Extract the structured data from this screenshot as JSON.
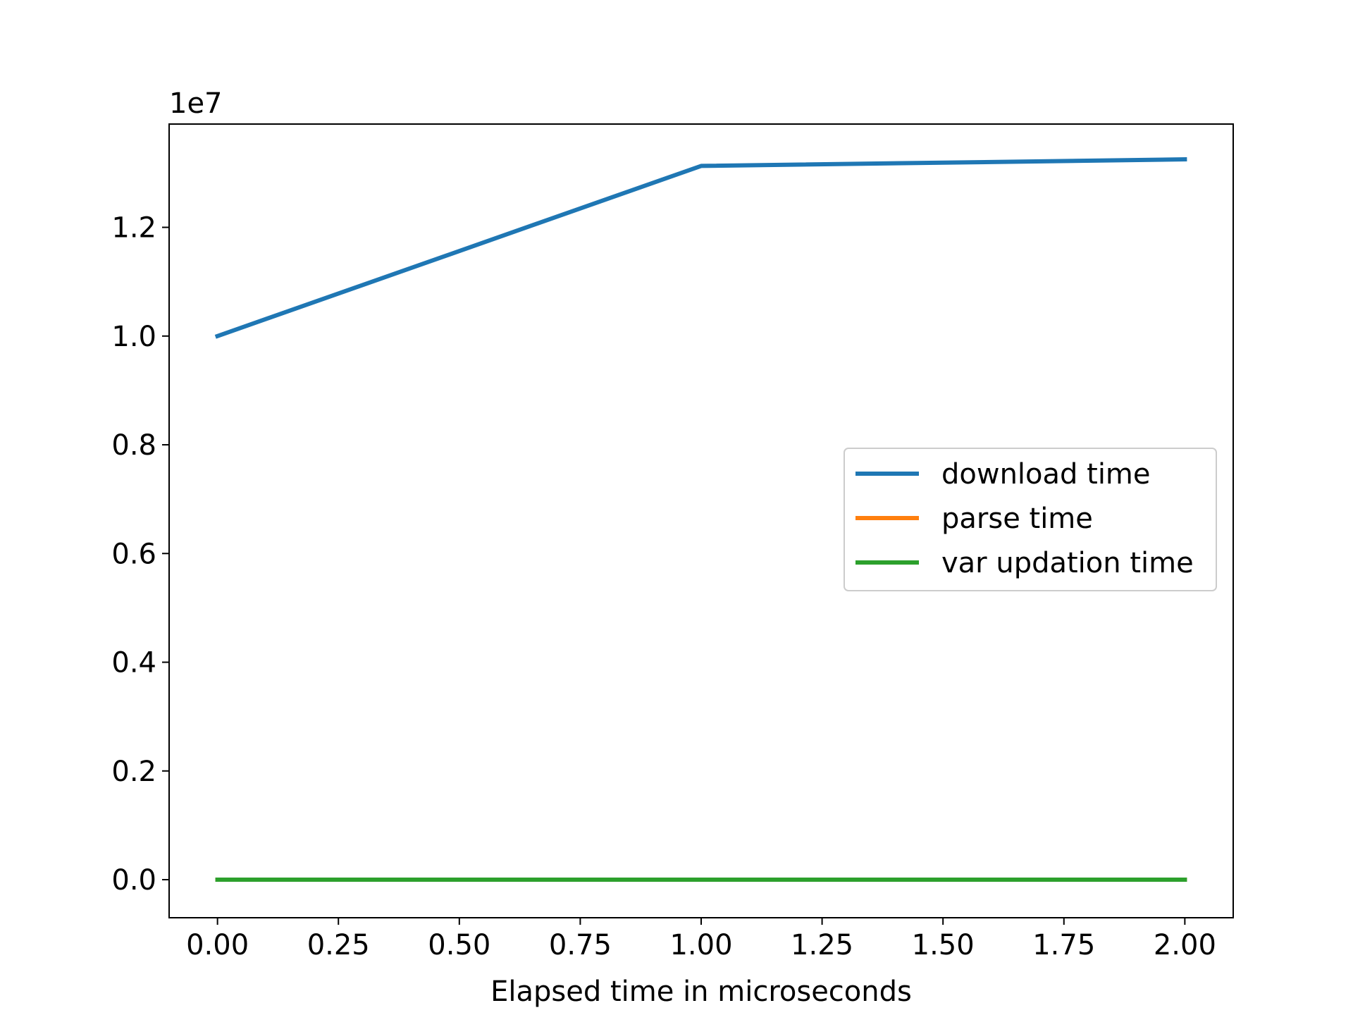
{
  "chart_data": {
    "type": "line",
    "title": "",
    "xlabel": "Elapsed time in microseconds",
    "ylabel": "",
    "y_offset_text": "1e7",
    "x": [
      0,
      1,
      2
    ],
    "xlim": [
      -0.1,
      2.1
    ],
    "ylim": [
      -0.07,
      1.39
    ],
    "y_multiplier": 10000000,
    "x_ticks": [
      0.0,
      0.25,
      0.5,
      0.75,
      1.0,
      1.25,
      1.5,
      1.75,
      2.0
    ],
    "x_tick_labels": [
      "0.00",
      "0.25",
      "0.50",
      "0.75",
      "1.00",
      "1.25",
      "1.50",
      "1.75",
      "2.00"
    ],
    "y_ticks": [
      0.0,
      0.2,
      0.4,
      0.6,
      0.8,
      1.0,
      1.2
    ],
    "y_tick_labels": [
      "0.0",
      "0.2",
      "0.4",
      "0.6",
      "0.8",
      "1.0",
      "1.2"
    ],
    "grid": false,
    "legend_position": "center-right",
    "series": [
      {
        "name": "download time",
        "color": "#1f77b4",
        "values": [
          1.0,
          1.313,
          1.325
        ]
      },
      {
        "name": "parse time",
        "color": "#ff7f0e",
        "values": [
          0.0,
          0.0,
          0.0
        ]
      },
      {
        "name": "var updation time",
        "color": "#2ca02c",
        "values": [
          0.0,
          0.0,
          0.0
        ]
      }
    ]
  }
}
